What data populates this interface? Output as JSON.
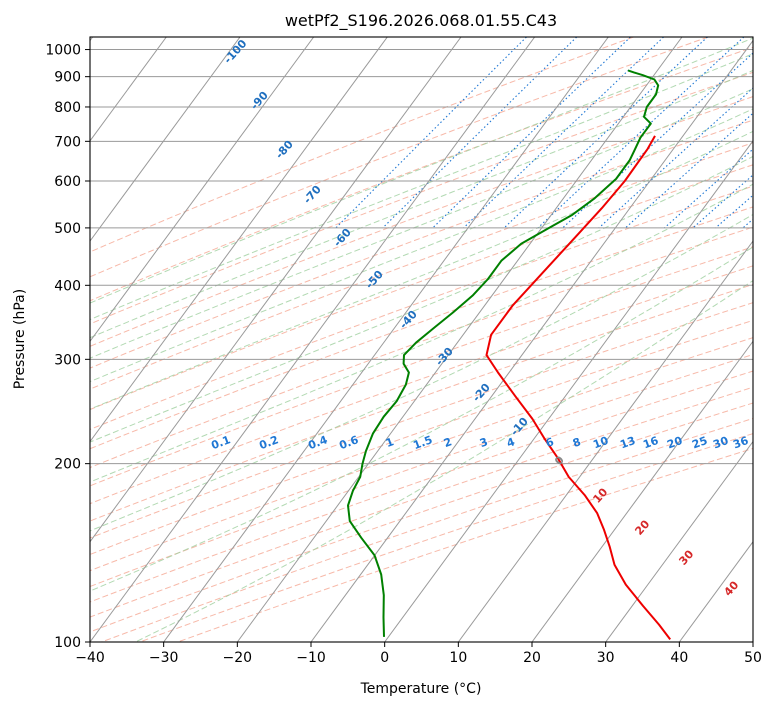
{
  "chart_data": {
    "type": "skew-t",
    "title": "wetPf2_S196.2026.068.01.55.C43",
    "xlabel": "Temperature (°C)",
    "ylabel": "Pressure (hPa)",
    "xlim": [
      -40,
      50
    ],
    "ylim": [
      1050,
      100
    ],
    "x_ticks": [
      -40,
      -30,
      -20,
      -10,
      0,
      10,
      20,
      30,
      40,
      50
    ],
    "x_tick_labels": [
      "−40",
      "−30",
      "−20",
      "−10",
      "0",
      "10",
      "20",
      "30",
      "40",
      "50"
    ],
    "y_ticks": [
      100,
      200,
      300,
      400,
      500,
      600,
      700,
      800,
      900,
      1000
    ],
    "y_tick_labels": [
      "100",
      "200",
      "300",
      "400",
      "500",
      "600",
      "700",
      "800",
      "900",
      "1000"
    ],
    "grid": true,
    "colors": {
      "temperature": "#ee0000",
      "dewpoint": "#008000",
      "isotherm": "#9a9a9a",
      "dry_adiabat": "#f4a28c",
      "moist_adiabat": "#9fcf9f",
      "mixing_ratio": "#1f77d4",
      "label_blue": "#1f6fbf",
      "label_red": "#d62728",
      "label_gray": "#888888"
    },
    "series": [
      {
        "name": "Temperature",
        "points": [
          [
            -13.8,
            715
          ],
          [
            -13.5,
            680
          ],
          [
            -13.4,
            600
          ],
          [
            -13.8,
            540
          ],
          [
            -14.4,
            490
          ],
          [
            -15.4,
            420
          ],
          [
            -16.2,
            370
          ],
          [
            -16.2,
            330
          ],
          [
            -14.8,
            305
          ],
          [
            -11.5,
            285
          ],
          [
            -6.8,
            260
          ],
          [
            -2.2,
            238
          ],
          [
            1.5,
            220
          ],
          [
            5.0,
            205
          ],
          [
            8.5,
            190
          ],
          [
            12.5,
            177
          ],
          [
            16.0,
            165
          ],
          [
            18.5,
            155
          ],
          [
            21.0,
            145
          ],
          [
            23.5,
            135
          ],
          [
            27.0,
            125
          ],
          [
            31.5,
            115
          ],
          [
            35.5,
            107
          ],
          [
            38.5,
            101
          ]
        ]
      },
      {
        "name": "Dewpoint",
        "points": [
          [
            -24.0,
            922
          ],
          [
            -23.0,
            915
          ],
          [
            -21.5,
            905
          ],
          [
            -19.5,
            890
          ],
          [
            -18.4,
            870
          ],
          [
            -17.8,
            840
          ],
          [
            -17.8,
            800
          ],
          [
            -17.2,
            770
          ],
          [
            -15.6,
            750
          ],
          [
            -15.6,
            710
          ],
          [
            -15.2,
            680
          ],
          [
            -14.8,
            650
          ],
          [
            -14.8,
            605
          ],
          [
            -15.8,
            560
          ],
          [
            -17.2,
            525
          ],
          [
            -19.0,
            500
          ],
          [
            -21.2,
            470
          ],
          [
            -22.2,
            440
          ],
          [
            -22.2,
            410
          ],
          [
            -22.6,
            385
          ],
          [
            -23.6,
            360
          ],
          [
            -24.6,
            340
          ],
          [
            -25.6,
            320
          ],
          [
            -26.0,
            305
          ],
          [
            -25.2,
            295
          ],
          [
            -23.6,
            285
          ],
          [
            -22.8,
            272
          ],
          [
            -22.4,
            255
          ],
          [
            -22.6,
            240
          ],
          [
            -22.4,
            225
          ],
          [
            -21.6,
            210
          ],
          [
            -20.8,
            200
          ],
          [
            -19.8,
            190
          ],
          [
            -19.4,
            180
          ],
          [
            -18.6,
            170
          ],
          [
            -16.8,
            160
          ],
          [
            -13.6,
            150
          ],
          [
            -10.0,
            140
          ],
          [
            -7.2,
            130
          ],
          [
            -4.8,
            120
          ],
          [
            -2.6,
            110
          ],
          [
            -0.6,
            102
          ]
        ]
      }
    ],
    "moist_adiabat_labels": [
      "-100",
      "-90",
      "-80",
      "-70",
      "-60",
      "-50",
      "-40",
      "-30",
      "-20",
      "-10",
      "0",
      "10",
      "20",
      "30",
      "40"
    ],
    "mixing_ratio_labels": [
      "0.1",
      "0.2",
      "0.4",
      "0.6",
      "1",
      "1.5",
      "2",
      "3",
      "4",
      "6",
      "8",
      "10",
      "13",
      "16",
      "20",
      "25",
      "30",
      "36"
    ]
  }
}
